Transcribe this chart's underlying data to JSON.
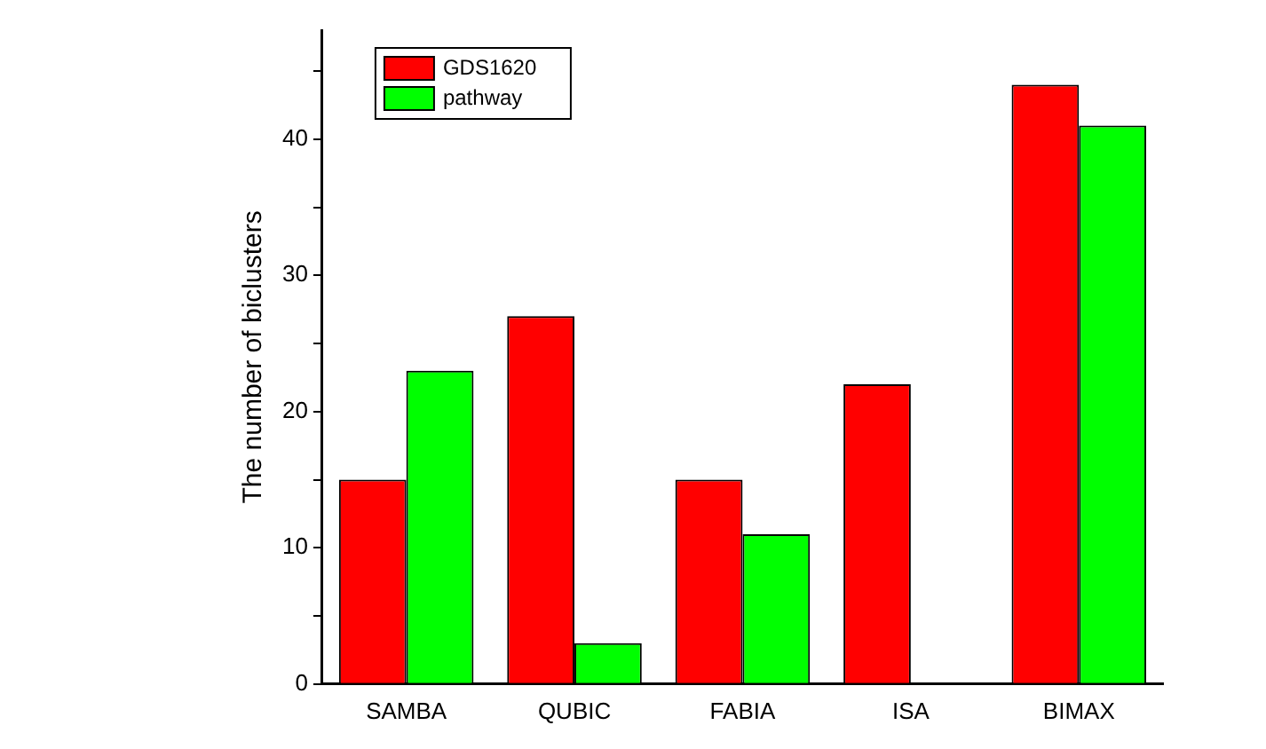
{
  "chart_data": {
    "type": "bar",
    "ylabel": "The number of biclusters",
    "categories": [
      "SAMBA",
      "QUBIC",
      "FABIA",
      "ISA",
      "BIMAX"
    ],
    "series": [
      {
        "name": "GDS1620",
        "color": "#ff0000",
        "values": [
          15,
          27,
          15,
          22,
          44
        ]
      },
      {
        "name": "pathway",
        "color": "#00ff00",
        "values": [
          23,
          3,
          11,
          0,
          41
        ]
      }
    ],
    "ylim": [
      0,
      48
    ],
    "yticks": [
      0,
      {
        "value": 5,
        "label": null
      },
      10,
      {
        "value": 15,
        "label": null
      },
      20,
      {
        "value": 25,
        "label": null
      },
      30,
      {
        "value": 35,
        "label": null
      },
      40,
      {
        "value": 45,
        "label": null
      }
    ],
    "grid": false,
    "legend": "top left"
  }
}
